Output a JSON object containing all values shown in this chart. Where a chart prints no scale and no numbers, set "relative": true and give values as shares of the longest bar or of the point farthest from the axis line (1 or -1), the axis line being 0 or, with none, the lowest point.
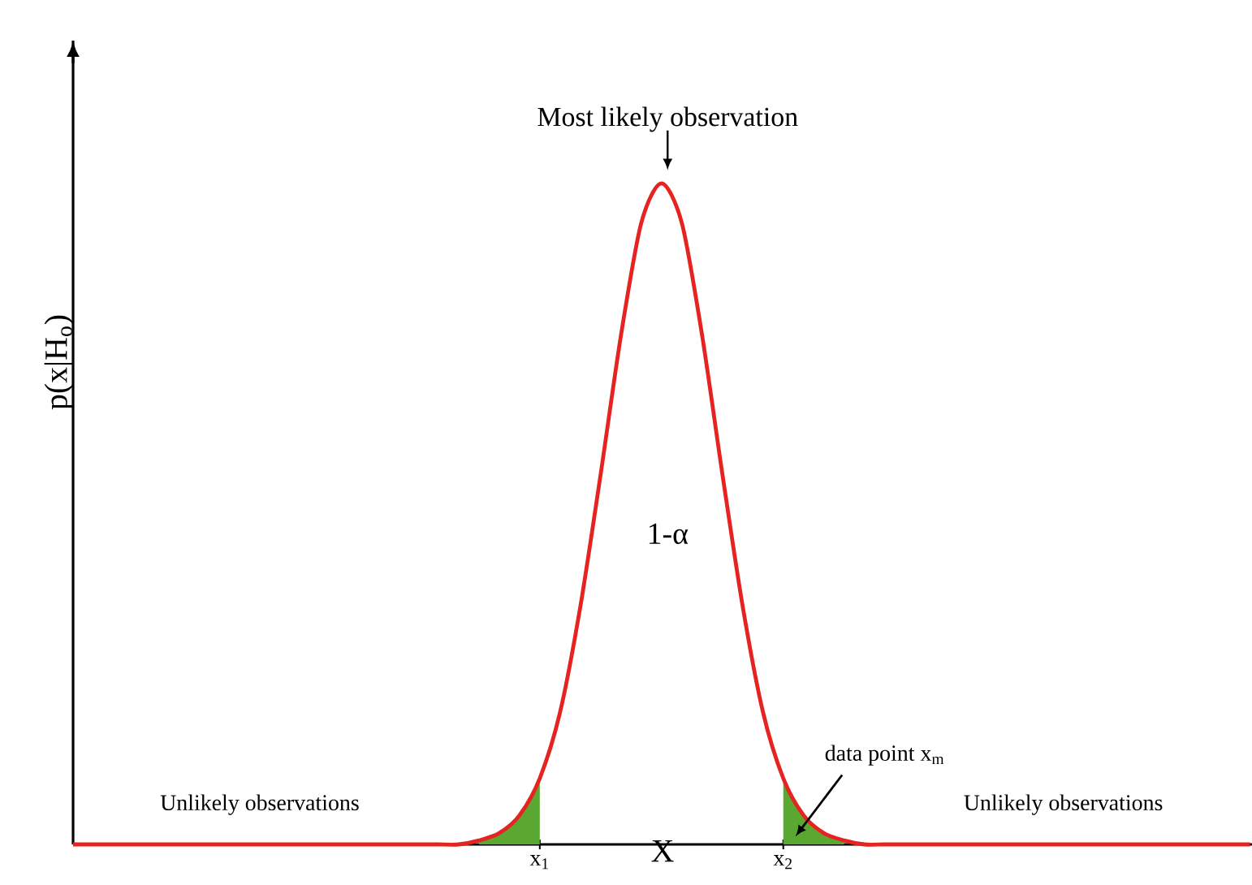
{
  "chart_data": {
    "type": "line",
    "relative": true,
    "xlabel": "X",
    "ylabel": "p(x|H$_{o}$)",
    "categories": [
      null,
      null,
      null,
      null,
      null,
      null,
      null,
      null,
      null,
      null,
      null,
      null,
      null,
      null,
      null,
      null,
      null,
      null,
      null,
      null,
      null,
      null,
      null,
      "x$_{1}$",
      null,
      null,
      null,
      null,
      null,
      null,
      null,
      null,
      null,
      null,
      null,
      "x$_{2}$",
      null,
      null,
      null,
      null,
      null,
      null,
      null,
      null,
      null,
      null,
      null,
      null,
      null,
      null,
      null,
      null,
      null,
      null,
      null,
      null,
      null,
      null,
      null
    ],
    "series": [
      {
        "color": "#e52421",
        "values": [
          0,
          0,
          0,
          0,
          0,
          0,
          0,
          0,
          0,
          0,
          0,
          0,
          0,
          0,
          0,
          0,
          0,
          0,
          0,
          0,
          0.006,
          0.017,
          0.044,
          0.1,
          0.2,
          0.36,
          0.56,
          0.77,
          0.94,
          1,
          0.94,
          0.77,
          0.56,
          0.36,
          0.2,
          0.1,
          0.044,
          0.017,
          0.006,
          0,
          0,
          0,
          0,
          0,
          0,
          0,
          0,
          0,
          0,
          0,
          0,
          0,
          0,
          0,
          0,
          0,
          0,
          0,
          0
        ]
      },
      {
        "type": "area",
        "color": "#5aa832",
        "values": [
          null,
          null,
          null,
          null,
          null,
          null,
          null,
          null,
          null,
          null,
          null,
          null,
          null,
          null,
          null,
          null,
          null,
          null,
          null,
          null,
          0.006,
          0.017,
          0.044,
          0.1,
          null,
          null,
          null,
          null,
          null,
          null,
          null,
          null,
          null,
          null,
          null,
          0.1,
          0.044,
          0.017,
          0.006,
          null,
          null,
          null,
          null,
          null,
          null,
          null,
          null,
          null,
          null,
          null,
          null,
          null,
          null,
          null,
          null,
          null,
          null,
          null,
          null
        ]
      }
    ],
    "annotations": [
      "Most likely observation",
      "1-α",
      "Unlikely observations",
      "Unlikely observations",
      "data point x$_{m}$"
    ]
  }
}
